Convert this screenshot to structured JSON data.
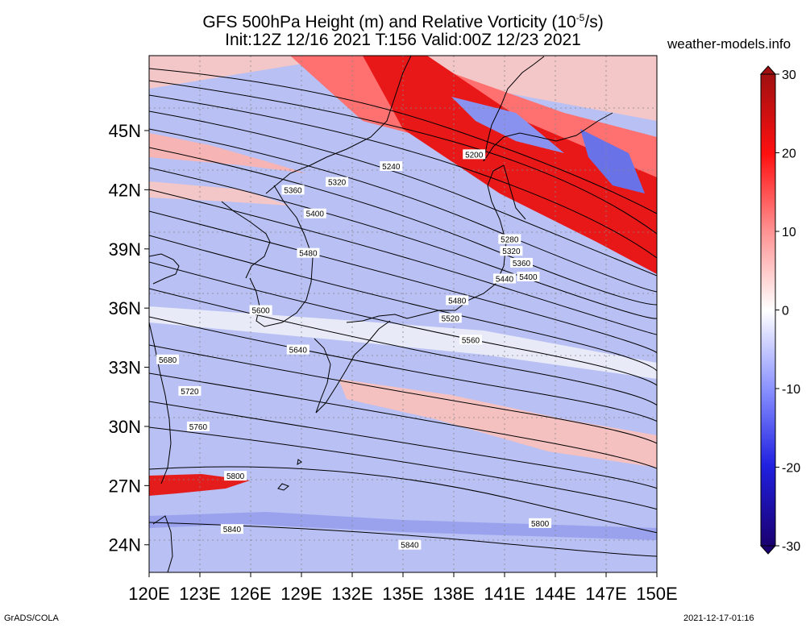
{
  "header": {
    "title_prefix": "GFS 500hPa Height (m) and Relative Vorticity (10",
    "title_exp": "-5",
    "title_suffix": "/s)",
    "subtitle": "Init:12Z 12/16 2021 T:156 Valid:00Z 12/23 2021",
    "credit": "weather-models.info"
  },
  "axes": {
    "lat_labels": [
      "45N",
      "42N",
      "39N",
      "36N",
      "33N",
      "30N",
      "27N",
      "24N"
    ],
    "lat_values": [
      45,
      42,
      39,
      36,
      33,
      30,
      27,
      24
    ],
    "lon_labels": [
      "120E",
      "123E",
      "126E",
      "129E",
      "132E",
      "135E",
      "138E",
      "141E",
      "144E",
      "147E",
      "150E"
    ],
    "lon_values": [
      120,
      123,
      126,
      129,
      132,
      135,
      138,
      141,
      144,
      147,
      150
    ]
  },
  "colorbar": {
    "labels": [
      "30",
      "20",
      "10",
      "0",
      "-10",
      "-20",
      "-30"
    ],
    "values": [
      30,
      20,
      10,
      0,
      -10,
      -20,
      -30
    ],
    "colors": [
      "#a01010",
      "#ff1010",
      "#ff9090",
      "#ffffff",
      "#8890ff",
      "#2020e0",
      "#1a0070"
    ]
  },
  "contours": {
    "line_color": "#000000",
    "labels": [
      {
        "text": "5200",
        "lon": 139.2,
        "lat": 43.8
      },
      {
        "text": "5240",
        "lon": 134.3,
        "lat": 43.2
      },
      {
        "text": "5320",
        "lon": 131.1,
        "lat": 42.4
      },
      {
        "text": "5360",
        "lon": 128.5,
        "lat": 42.0
      },
      {
        "text": "5400",
        "lon": 129.8,
        "lat": 40.8
      },
      {
        "text": "5480",
        "lon": 129.4,
        "lat": 38.8
      },
      {
        "text": "5600",
        "lon": 126.6,
        "lat": 35.9
      },
      {
        "text": "5640",
        "lon": 128.8,
        "lat": 33.9
      },
      {
        "text": "5680",
        "lon": 121.1,
        "lat": 33.4
      },
      {
        "text": "5720",
        "lon": 122.4,
        "lat": 31.8
      },
      {
        "text": "5760",
        "lon": 122.9,
        "lat": 30.0
      },
      {
        "text": "5800",
        "lon": 125.1,
        "lat": 27.5
      },
      {
        "text": "5840",
        "lon": 124.9,
        "lat": 24.8
      },
      {
        "text": "5840",
        "lon": 135.4,
        "lat": 24.0
      },
      {
        "text": "5800",
        "lon": 143.1,
        "lat": 25.1
      },
      {
        "text": "5280",
        "lon": 141.3,
        "lat": 39.5
      },
      {
        "text": "5320",
        "lon": 141.4,
        "lat": 38.9
      },
      {
        "text": "5360",
        "lon": 142.0,
        "lat": 38.3
      },
      {
        "text": "5400",
        "lon": 142.4,
        "lat": 37.6
      },
      {
        "text": "5440",
        "lon": 141.0,
        "lat": 37.5
      },
      {
        "text": "5480",
        "lon": 138.2,
        "lat": 36.4
      },
      {
        "text": "5520",
        "lon": 137.8,
        "lat": 35.5
      },
      {
        "text": "5560",
        "lon": 139.0,
        "lat": 34.4
      }
    ]
  },
  "footer": {
    "left": "GrADS/COLA",
    "right": "2021-12-17-01:16"
  }
}
